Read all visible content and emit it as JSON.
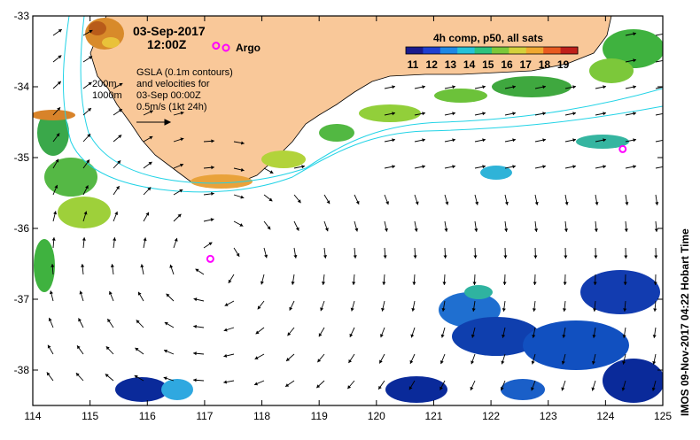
{
  "map": {
    "date": "03-Sep-2017",
    "time": "12:00Z",
    "argo_label": "Argo",
    "depth_200": "200m",
    "depth_1000": "1000m",
    "legend_lines": [
      "GSLA (0.1m contours)",
      "and velocities for",
      "03-Sep 00:00Z",
      "0.5m/s (1kt 24h)"
    ],
    "colorbar_title": "4h comp, p50, all sats",
    "colorbar_ticks": [
      "11",
      "12",
      "13",
      "14",
      "15",
      "16",
      "17",
      "18",
      "19"
    ],
    "credit": "IMOS 09-Nov-2017 04:22 Hobart Time",
    "x_ticks": [
      "114",
      "115",
      "116",
      "117",
      "118",
      "119",
      "120",
      "121",
      "122",
      "123",
      "124",
      "125"
    ],
    "y_ticks": [
      "-33",
      "-34",
      "-35",
      "-36",
      "-37",
      "-38"
    ],
    "argo_floats": [
      {
        "lon": 117.2,
        "lat": -33.42
      },
      {
        "lon": 117.1,
        "lat": -36.43
      },
      {
        "lon": 124.3,
        "lat": -34.88
      }
    ],
    "colors": {
      "land": "#f9c899",
      "contour": "#22d3e6",
      "argo": "#ff00ff"
    }
  }
}
